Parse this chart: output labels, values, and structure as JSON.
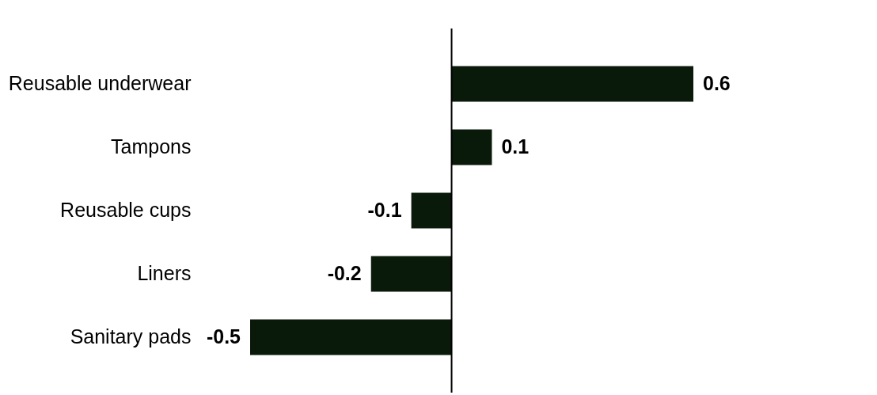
{
  "chart_data": {
    "type": "bar",
    "orientation": "horizontal",
    "categories": [
      "Reusable underwear",
      "Tampons",
      "Reusable cups",
      "Liners",
      "Sanitary pads"
    ],
    "values": [
      0.6,
      0.1,
      -0.1,
      -0.2,
      -0.5
    ],
    "color": "#0a1a0a",
    "xlim": [
      -0.5,
      0.6
    ],
    "data_labels": true,
    "tick_labels": "y"
  }
}
